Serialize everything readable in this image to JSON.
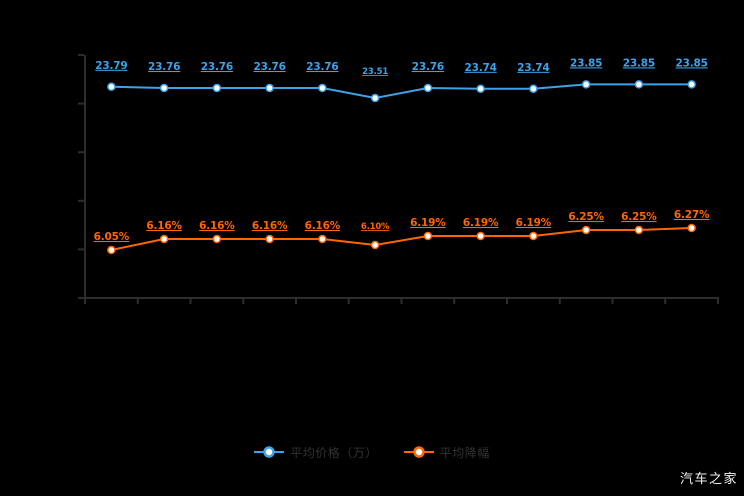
{
  "page": {
    "background": "#000000"
  },
  "watermark": {
    "text": "汽车之家"
  },
  "legend": {
    "items": [
      {
        "label": "平均价格（万）",
        "color": "#3da2e8"
      },
      {
        "label": "平均降幅",
        "color": "#ff6600"
      }
    ]
  },
  "chart_data": {
    "type": "line",
    "title": "",
    "background": "#000000",
    "grid": false,
    "legend_position": "bottom",
    "axis": {
      "y_tick_count": 6,
      "x_tick_count": 13,
      "axis_color": "#2d2d2d",
      "tick_labels_visible": false
    },
    "point_count": 12,
    "small_label_index": 5,
    "series": [
      {
        "name": "平均价格（万）",
        "color": "#3da2e8",
        "unit": "万",
        "values": [
          23.79,
          23.76,
          23.76,
          23.76,
          23.76,
          23.51,
          23.76,
          23.74,
          23.74,
          23.85,
          23.85,
          23.85
        ],
        "labels": [
          "23.79",
          "23.76",
          "23.76",
          "23.76",
          "23.76",
          "23.51",
          "23.76",
          "23.74",
          "23.74",
          "23.85",
          "23.85",
          "23.85"
        ]
      },
      {
        "name": "平均降幅",
        "color": "#ff6600",
        "unit": "%",
        "values": [
          6.05,
          6.16,
          6.16,
          6.16,
          6.16,
          6.1,
          6.19,
          6.19,
          6.19,
          6.25,
          6.25,
          6.27
        ],
        "labels": [
          "6.05%",
          "6.16%",
          "6.16%",
          "6.16%",
          "6.16%",
          "6.10%",
          "6.19%",
          "6.19%",
          "6.19%",
          "6.25%",
          "6.25%",
          "6.27%"
        ]
      }
    ]
  }
}
